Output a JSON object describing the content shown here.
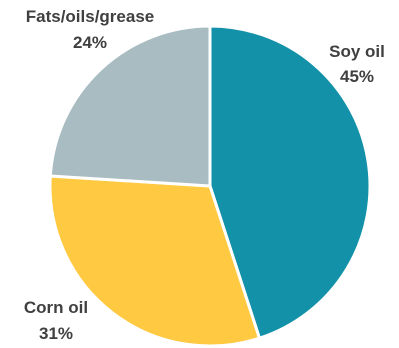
{
  "chart_data": {
    "type": "pie",
    "title": "",
    "start_angle_deg": 0,
    "direction": "clockwise",
    "slice_border_color": "#ffffff",
    "label_color": "#404040",
    "slices": [
      {
        "label": "Soy oil",
        "value": 45,
        "value_label": "45%",
        "color": "#1391A8"
      },
      {
        "label": "Corn oil",
        "value": 31,
        "value_label": "31%",
        "color": "#FFC942"
      },
      {
        "label": "Fats/oils/grease",
        "value": 24,
        "value_label": "24%",
        "color": "#A8BCC1"
      }
    ]
  }
}
